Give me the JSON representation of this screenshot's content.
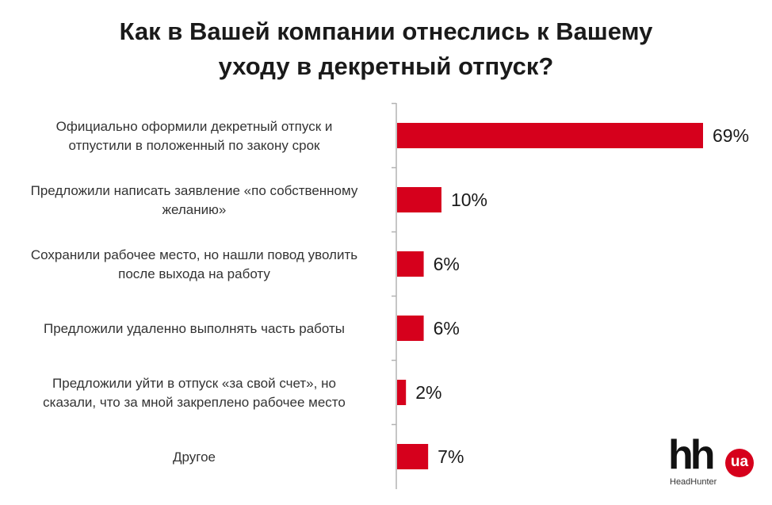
{
  "title_lines": [
    "Как в Вашей компании отнеслись к Вашему",
    "уходу в декретный отпуск?"
  ],
  "chart_data": {
    "type": "bar",
    "orientation": "horizontal",
    "categories": [
      [
        "Официально оформили декретный отпуск и",
        "отпустили в положенный по закону срок"
      ],
      [
        "Предложили написать заявление «по собственному",
        "желанию»"
      ],
      [
        "Сохранили рабочее место, но нашли повод уволить",
        "после выхода на работу"
      ],
      [
        "Предложили удаленно выполнять часть работы"
      ],
      [
        "Предложили уйти в отпуск «за свой счет», но",
        "сказали, что за мной закреплено рабочее место"
      ],
      [
        "Другое"
      ]
    ],
    "values": [
      69,
      10,
      6,
      6,
      2,
      7
    ],
    "value_labels": [
      "69%",
      "10%",
      "6%",
      "6%",
      "2%",
      "7%"
    ],
    "bar_color": "#d6001c",
    "grid": false,
    "legend": "none"
  },
  "logo": {
    "mark": "hh",
    "badge": "ua",
    "name": "HeadHunter",
    "badge_color": "#d6001c"
  }
}
